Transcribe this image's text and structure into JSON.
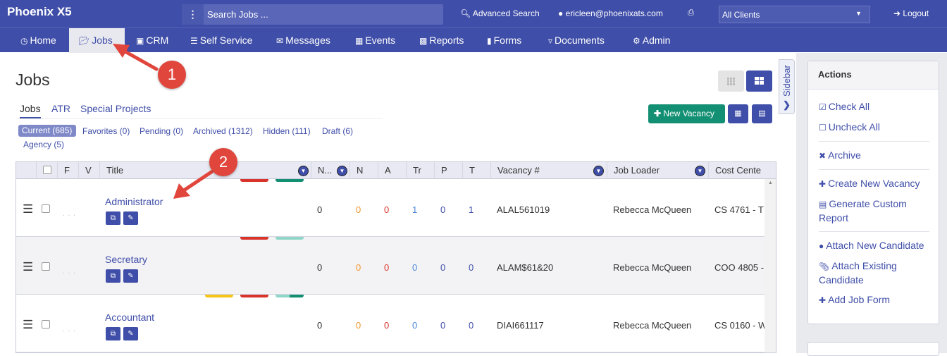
{
  "topbar": {
    "brand": "Phoenix X5",
    "search_placeholder": "Search Jobs ...",
    "advanced_search": "Advanced Search",
    "user_email": "ericleen@phoenixats.com",
    "clients_selected": "All Clients",
    "logout": "Logout"
  },
  "nav": [
    {
      "label": "Home",
      "icon": "dashboard-icon"
    },
    {
      "label": "Jobs",
      "icon": "folder-open-icon",
      "active": true
    },
    {
      "label": "CRM",
      "icon": "briefcase-icon"
    },
    {
      "label": "Self Service",
      "icon": "list-icon"
    },
    {
      "label": "Messages",
      "icon": "envelope-icon"
    },
    {
      "label": "Events",
      "icon": "calendar-icon"
    },
    {
      "label": "Reports",
      "icon": "report-icon"
    },
    {
      "label": "Forms",
      "icon": "file-icon"
    },
    {
      "label": "Documents",
      "icon": "filter-icon"
    },
    {
      "label": "Admin",
      "icon": "gear-icon"
    }
  ],
  "page": {
    "title": "Jobs",
    "subtabs": [
      "Jobs",
      "ATR",
      "Special Projects"
    ],
    "filters": [
      "Current (685)",
      "Favorites (0)",
      "Pending (0)",
      "Archived (1312)",
      "Hidden (111)",
      "Draft (6)",
      "Agency (5)"
    ],
    "new_vacancy": "New Vacancy"
  },
  "table": {
    "headers": {
      "f": "F",
      "v": "V",
      "title": "Title",
      "n1": "N...",
      "n": "N",
      "a": "A",
      "tr": "Tr",
      "p": "P",
      "t": "T",
      "vacancy": "Vacancy #",
      "loader": "Job Loader",
      "cost": "Cost Cente"
    },
    "rows": [
      {
        "title": "Administrator",
        "n1": "0",
        "n": "0",
        "a": "0",
        "tr": "1",
        "p": "0",
        "t": "1",
        "vacancy": "ALAL561019",
        "loader": "Rebecca McQueen",
        "cost": "CS 4761 - T"
      },
      {
        "title": "Secretary",
        "n1": "0",
        "n": "0",
        "a": "0",
        "tr": "0",
        "p": "0",
        "t": "0",
        "vacancy": "ALAM$61&20",
        "loader": "Rebecca McQueen",
        "cost": "COO 4805 -"
      },
      {
        "title": "Accountant",
        "n1": "0",
        "n": "0",
        "a": "0",
        "tr": "0",
        "p": "0",
        "t": "0",
        "vacancy": "DIAI661117",
        "loader": "Rebecca McQueen",
        "cost": "CS 0160 - W"
      }
    ]
  },
  "sidebar": {
    "tab_label": "Sidebar",
    "actions_title": "Actions",
    "actions": [
      "Check All",
      "Uncheck All",
      "Archive",
      "Create New Vacancy",
      "Generate Custom Report",
      "Attach New Candidate",
      "Attach Existing Candidate",
      "Add Job Form"
    ]
  },
  "callouts": [
    "1",
    "2"
  ],
  "colors": {
    "brand": "#3f4ea8",
    "success": "#139073",
    "orange": "#f0962e",
    "red": "#d9342b",
    "blue": "#4a86d8",
    "callout": "#e0463c"
  }
}
